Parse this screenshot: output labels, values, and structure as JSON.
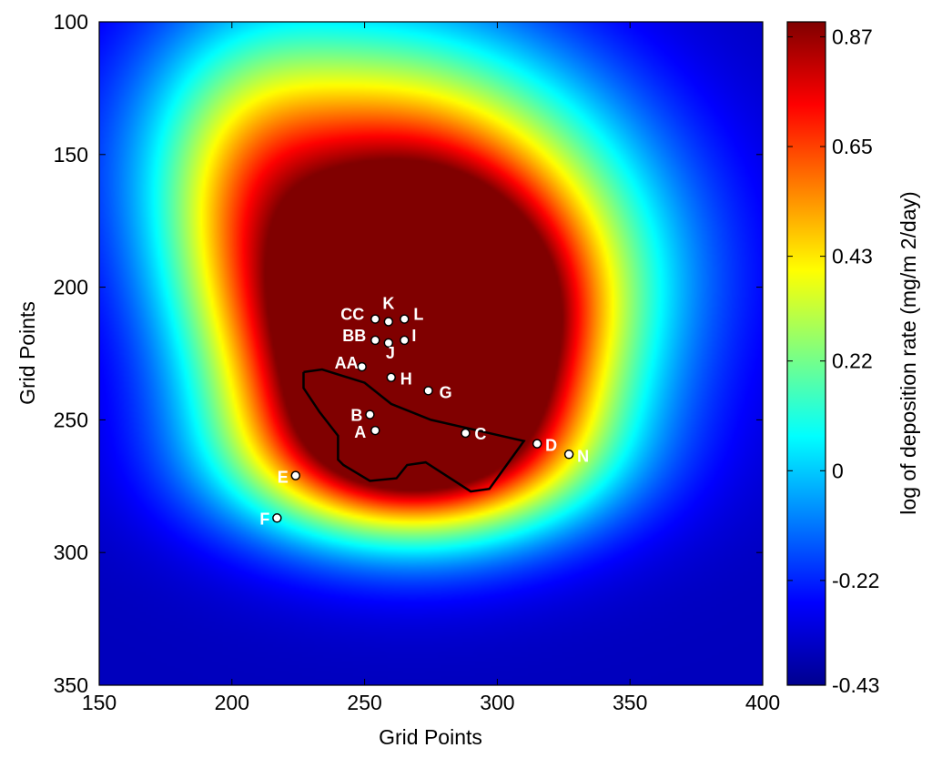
{
  "chart_data": {
    "type": "heatmap",
    "title": "",
    "xlabel": "Grid Points",
    "ylabel": "Grid Points",
    "xlim": [
      150,
      400
    ],
    "ylim": [
      350,
      100
    ],
    "y_reversed": true,
    "xticks": [
      150,
      200,
      250,
      300,
      350,
      400
    ],
    "yticks": [
      100,
      150,
      200,
      250,
      300,
      350
    ],
    "xtick_labels": [
      "150",
      "200",
      "250",
      "300",
      "350",
      "400"
    ],
    "ytick_labels": [
      "100",
      "150",
      "200",
      "250",
      "300",
      "350"
    ],
    "colormap": "jet",
    "colorbar": {
      "label": "log of deposition rate (mg/m  2/day)",
      "min": -0.43,
      "max": 0.9,
      "ticks": [
        -0.43,
        -0.22,
        0,
        0.22,
        0.43,
        0.65,
        0.87
      ],
      "tick_labels": [
        "-0.43",
        "-0.22",
        "0",
        "0.22",
        "0.43",
        "0.65",
        "0.87"
      ]
    },
    "field_blobs": [
      {
        "cx": 270,
        "cy": 225,
        "sx": 42,
        "sy": 35,
        "amp": 1.35,
        "theta": -0.1
      },
      {
        "cx": 268,
        "cy": 170,
        "sx": 60,
        "sy": 45,
        "amp": 0.9,
        "theta": 0.35
      },
      {
        "cx": 205,
        "cy": 170,
        "sx": 25,
        "sy": 45,
        "amp": 0.25,
        "theta": 0
      },
      {
        "cx": 268,
        "cy": 265,
        "sx": 48,
        "sy": 22,
        "amp": 0.55,
        "theta": 0
      }
    ],
    "boundary": [
      [
        227,
        232
      ],
      [
        234,
        231
      ],
      [
        250,
        236
      ],
      [
        260,
        244
      ],
      [
        275,
        250
      ],
      [
        310,
        258
      ],
      [
        297,
        276
      ],
      [
        290,
        277
      ],
      [
        273,
        266
      ],
      [
        266,
        267
      ],
      [
        262,
        272
      ],
      [
        252,
        273
      ],
      [
        242,
        267
      ],
      [
        240,
        265
      ],
      [
        240,
        256
      ],
      [
        233,
        247
      ],
      [
        227,
        238
      ],
      [
        227,
        232
      ]
    ],
    "sites": [
      {
        "label": "CC",
        "x": 254,
        "y": 212
      },
      {
        "label": "K",
        "x": 259,
        "y": 213
      },
      {
        "label": "L",
        "x": 265,
        "y": 212
      },
      {
        "label": "BB",
        "x": 254,
        "y": 220
      },
      {
        "label": "J",
        "x": 259,
        "y": 221
      },
      {
        "label": "I",
        "x": 265,
        "y": 220
      },
      {
        "label": "AA",
        "x": 249,
        "y": 230
      },
      {
        "label": "H",
        "x": 260,
        "y": 234
      },
      {
        "label": "G",
        "x": 274,
        "y": 239
      },
      {
        "label": "B",
        "x": 252,
        "y": 248
      },
      {
        "label": "A",
        "x": 254,
        "y": 254
      },
      {
        "label": "C",
        "x": 288,
        "y": 255
      },
      {
        "label": "D",
        "x": 315,
        "y": 259
      },
      {
        "label": "N",
        "x": 327,
        "y": 263
      },
      {
        "label": "E",
        "x": 224,
        "y": 271
      },
      {
        "label": "F",
        "x": 217,
        "y": 287
      }
    ]
  }
}
